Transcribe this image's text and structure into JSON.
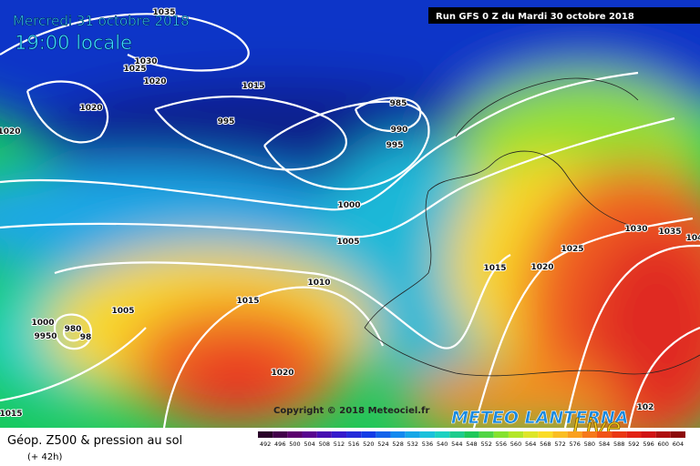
{
  "header": {
    "date": "Mercredi 31 octobre 2018",
    "time": "19:00 locale",
    "run": "Run GFS 0 Z du Mardi 30 octobre 2018"
  },
  "isobar_labels": [
    "1035",
    "1030",
    "1025",
    "1020",
    "1015",
    "1020",
    "1020",
    "995",
    "985",
    "990",
    "995",
    "1000",
    "1005",
    "1010",
    "1015",
    "1005",
    "1000",
    "9950",
    "980",
    "98",
    "1020",
    "1015",
    "1015",
    "1020",
    "1025",
    "1030",
    "1035",
    "104",
    "102"
  ],
  "copyright": "Copyright © 2018 Meteociel.fr",
  "footer": {
    "title": "Géop. Z500 & pression au sol",
    "lead": "(+ 42h)"
  },
  "logo": {
    "name": "METEO LANTERNA",
    "live": "Live"
  },
  "legend": {
    "levels": [
      492,
      496,
      500,
      504,
      508,
      512,
      516,
      520,
      524,
      528,
      532,
      536,
      540,
      544,
      548,
      552,
      556,
      560,
      564,
      568,
      572,
      576,
      580,
      584,
      588,
      592,
      596,
      600,
      604
    ]
  }
}
